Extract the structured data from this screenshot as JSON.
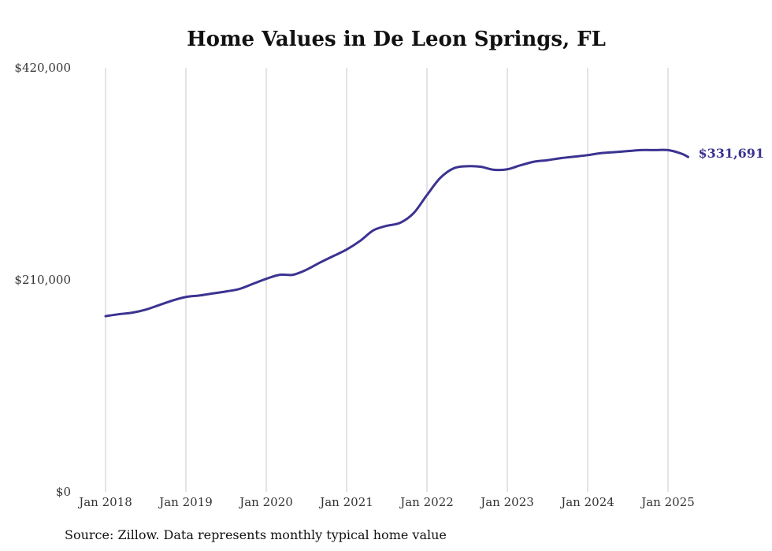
{
  "chart_data": {
    "type": "line",
    "title": "Home Values in De Leon Springs, FL",
    "xlabel": "",
    "ylabel": "",
    "source": "Source: Zillow. Data represents monthly typical home value",
    "ylim": [
      0,
      420000
    ],
    "y_ticks": [
      {
        "value": 0,
        "label": "$0"
      },
      {
        "value": 210000,
        "label": "$210,000"
      },
      {
        "value": 420000,
        "label": "$420,000"
      }
    ],
    "x_ticks": [
      {
        "value": "2018-01",
        "label": "Jan 2018"
      },
      {
        "value": "2019-01",
        "label": "Jan 2019"
      },
      {
        "value": "2020-01",
        "label": "Jan 2020"
      },
      {
        "value": "2021-01",
        "label": "Jan 2021"
      },
      {
        "value": "2022-01",
        "label": "Jan 2022"
      },
      {
        "value": "2023-01",
        "label": "Jan 2023"
      },
      {
        "value": "2024-01",
        "label": "Jan 2024"
      },
      {
        "value": "2025-01",
        "label": "Jan 2025"
      }
    ],
    "xlim": [
      "2018-01",
      "2025-04"
    ],
    "grid": {
      "vertical": true,
      "horizontal": false
    },
    "legend": "none",
    "end_label": "$331,691",
    "color": "#3b3391",
    "series": [
      {
        "x": [
          "2018-01",
          "2018-03",
          "2018-05",
          "2018-07",
          "2018-09",
          "2018-11",
          "2019-01",
          "2019-03",
          "2019-05",
          "2019-07",
          "2019-09",
          "2019-11",
          "2020-01",
          "2020-03",
          "2020-05",
          "2020-07",
          "2020-09",
          "2020-11",
          "2021-01",
          "2021-03",
          "2021-05",
          "2021-07",
          "2021-09",
          "2021-11",
          "2022-01",
          "2022-03",
          "2022-05",
          "2022-07",
          "2022-09",
          "2022-11",
          "2023-01",
          "2023-03",
          "2023-05",
          "2023-07",
          "2023-09",
          "2023-11",
          "2024-01",
          "2024-03",
          "2024-05",
          "2024-07",
          "2024-09",
          "2024-11",
          "2025-01",
          "2025-03",
          "2025-04"
        ],
        "values": [
          174000,
          176000,
          177500,
          180500,
          185000,
          189500,
          193000,
          194500,
          196500,
          198500,
          201000,
          206000,
          211000,
          215000,
          215000,
          220000,
          227000,
          233500,
          240000,
          248500,
          259000,
          263500,
          266500,
          276000,
          294000,
          311000,
          320500,
          322500,
          322000,
          319000,
          319500,
          323500,
          327000,
          328500,
          330500,
          332000,
          333500,
          335500,
          336500,
          337500,
          338500,
          338500,
          338500,
          335000,
          331691
        ]
      }
    ]
  }
}
